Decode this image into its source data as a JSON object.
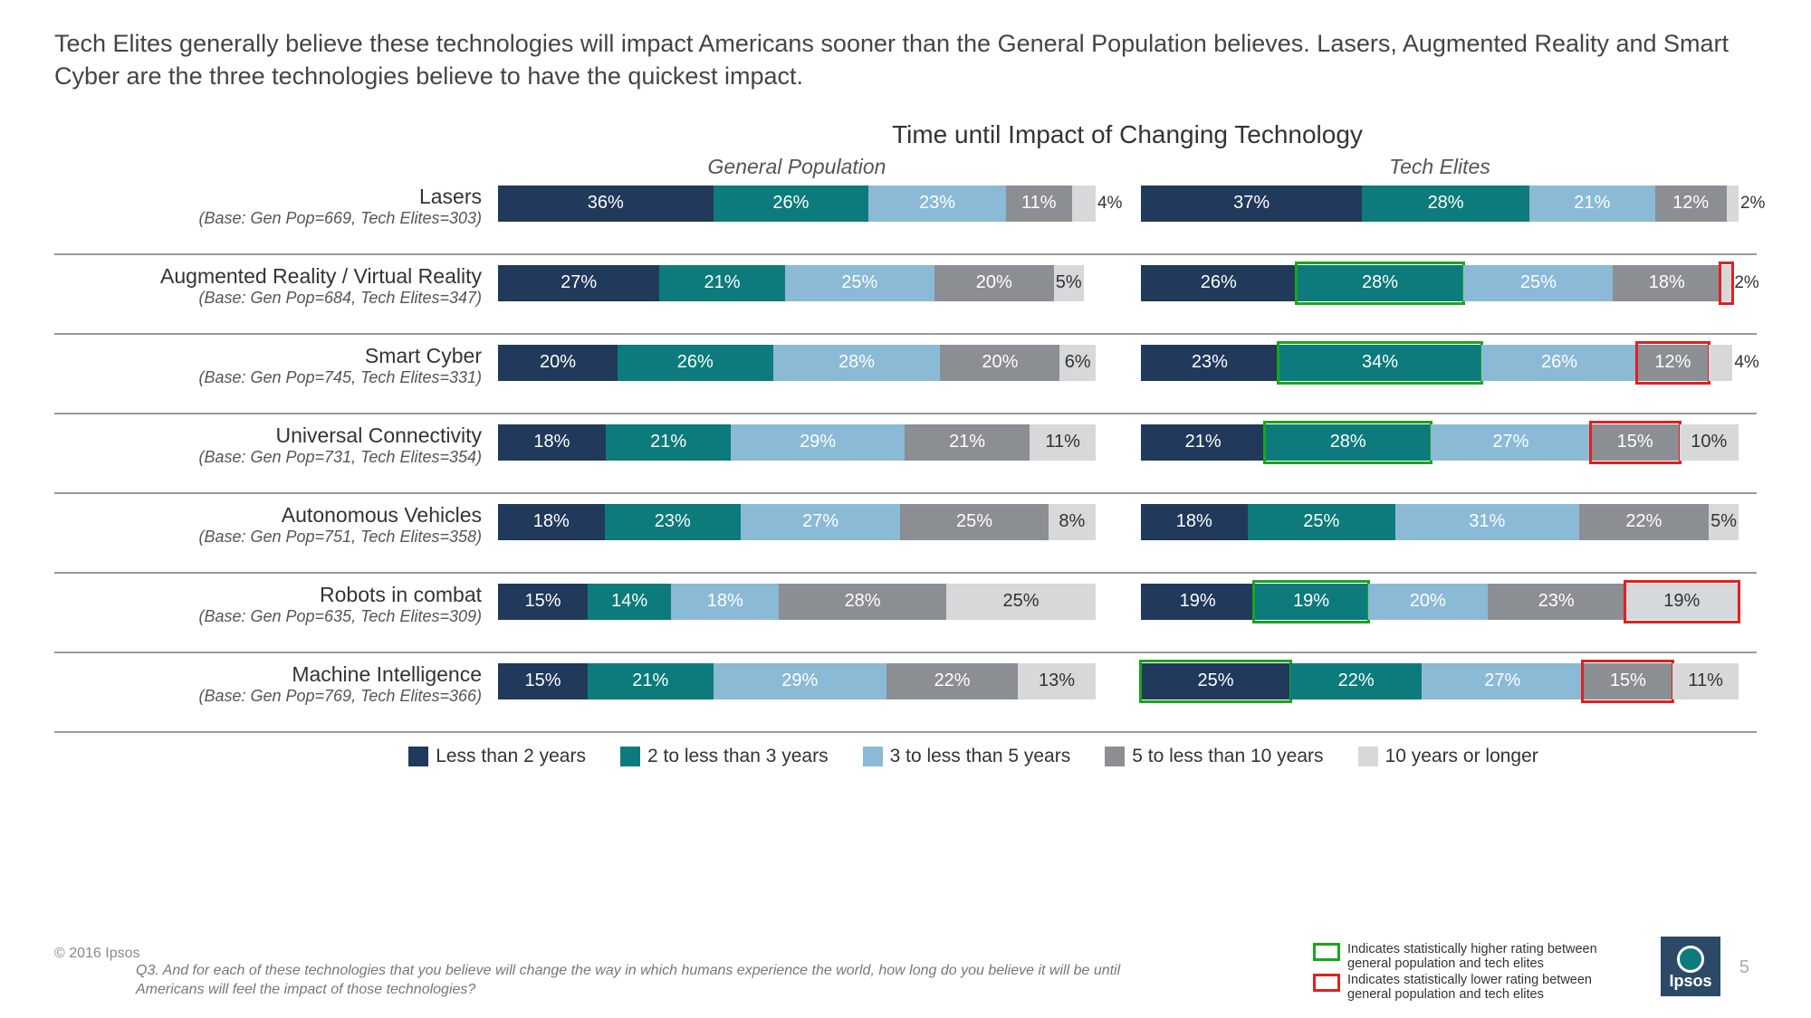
{
  "headline": "Tech Elites generally believe these technologies will impact Americans sooner than the General Population believes. Lasers, Augmented Reality and Smart Cyber are the three technologies believe to have the quickest impact.",
  "chart_title": "Time until Impact of Changing Technology",
  "column_headers": {
    "left": "General Population",
    "right": "Tech Elites"
  },
  "colors": {
    "seg1": "#21395b",
    "seg2": "#0d7b7b",
    "seg3": "#8bbad6",
    "seg4": "#8b8f94",
    "seg5": "#d6d8da",
    "higher_box": "#1aa51a",
    "lower_box": "#e02020",
    "row_border": "#999999",
    "text_dark": "#333333"
  },
  "legend_items": [
    {
      "label": "Less than 2 years",
      "color_key": "seg1"
    },
    {
      "label": "2 to less than 3 years",
      "color_key": "seg2"
    },
    {
      "label": "3 to less than 5 years",
      "color_key": "seg3"
    },
    {
      "label": "5 to less than 10 years",
      "color_key": "seg4"
    },
    {
      "label": "10 years or longer",
      "color_key": "seg5"
    }
  ],
  "bar_scale_percent": 100,
  "rows": [
    {
      "tech": "Lasers",
      "base": "(Base: Gen Pop=669, Tech Elites=303)",
      "gp": [
        {
          "v": 36
        },
        {
          "v": 26
        },
        {
          "v": 23
        },
        {
          "v": 11
        },
        {
          "v": 4,
          "overflow": true
        }
      ],
      "te": [
        {
          "v": 37
        },
        {
          "v": 28
        },
        {
          "v": 21
        },
        {
          "v": 12
        },
        {
          "v": 2,
          "overflow": true
        }
      ]
    },
    {
      "tech": "Augmented Reality / Virtual Reality",
      "base": "(Base: Gen Pop=684, Tech Elites=347)",
      "gp": [
        {
          "v": 27
        },
        {
          "v": 21
        },
        {
          "v": 25
        },
        {
          "v": 20
        },
        {
          "v": 5
        }
      ],
      "te": [
        {
          "v": 26
        },
        {
          "v": 28,
          "hl": "higher"
        },
        {
          "v": 25
        },
        {
          "v": 18
        },
        {
          "v": 2,
          "hl": "lower",
          "overflow": true
        }
      ]
    },
    {
      "tech": "Smart Cyber",
      "base": "(Base: Gen Pop=745, Tech Elites=331)",
      "gp": [
        {
          "v": 20
        },
        {
          "v": 26
        },
        {
          "v": 28
        },
        {
          "v": 20
        },
        {
          "v": 6
        }
      ],
      "te": [
        {
          "v": 23
        },
        {
          "v": 34,
          "hl": "higher"
        },
        {
          "v": 26
        },
        {
          "v": 12,
          "hl": "lower"
        },
        {
          "v": 4,
          "overflow": true
        }
      ]
    },
    {
      "tech": "Universal Connectivity",
      "base": "(Base: Gen Pop=731, Tech Elites=354)",
      "gp": [
        {
          "v": 18
        },
        {
          "v": 21
        },
        {
          "v": 29
        },
        {
          "v": 21
        },
        {
          "v": 11
        }
      ],
      "te": [
        {
          "v": 21
        },
        {
          "v": 28,
          "hl": "higher"
        },
        {
          "v": 27
        },
        {
          "v": 15,
          "hl": "lower"
        },
        {
          "v": 10
        }
      ]
    },
    {
      "tech": "Autonomous Vehicles",
      "base": "(Base: Gen Pop=751, Tech Elites=358)",
      "gp": [
        {
          "v": 18
        },
        {
          "v": 23
        },
        {
          "v": 27
        },
        {
          "v": 25
        },
        {
          "v": 8
        }
      ],
      "te": [
        {
          "v": 18
        },
        {
          "v": 25
        },
        {
          "v": 31
        },
        {
          "v": 22
        },
        {
          "v": 5
        }
      ]
    },
    {
      "tech": "Robots in combat",
      "base": "(Base: Gen Pop=635, Tech Elites=309)",
      "gp": [
        {
          "v": 15
        },
        {
          "v": 14
        },
        {
          "v": 18
        },
        {
          "v": 28
        },
        {
          "v": 25
        }
      ],
      "te": [
        {
          "v": 19
        },
        {
          "v": 19,
          "hl": "higher"
        },
        {
          "v": 20
        },
        {
          "v": 23
        },
        {
          "v": 19,
          "hl": "lower"
        }
      ]
    },
    {
      "tech": "Machine Intelligence",
      "base": "(Base: Gen Pop=769, Tech Elites=366)",
      "gp": [
        {
          "v": 15
        },
        {
          "v": 21
        },
        {
          "v": 29
        },
        {
          "v": 22
        },
        {
          "v": 13
        }
      ],
      "te": [
        {
          "v": 25,
          "hl": "higher"
        },
        {
          "v": 22
        },
        {
          "v": 27
        },
        {
          "v": 15,
          "hl": "lower"
        },
        {
          "v": 11
        }
      ]
    }
  ],
  "stat_legend": {
    "higher": "Indicates statistically higher rating between general population and tech elites",
    "lower": "Indicates statistically lower rating between general population and tech elites"
  },
  "footer": {
    "copyright": "© 2016 Ipsos",
    "question": "Q3. And for each of these technologies that you believe will change the way in which humans experience the world, how long do you believe it will be until Americans will feel the impact of those technologies?",
    "logo_text": "Ipsos",
    "page_number": "5"
  }
}
